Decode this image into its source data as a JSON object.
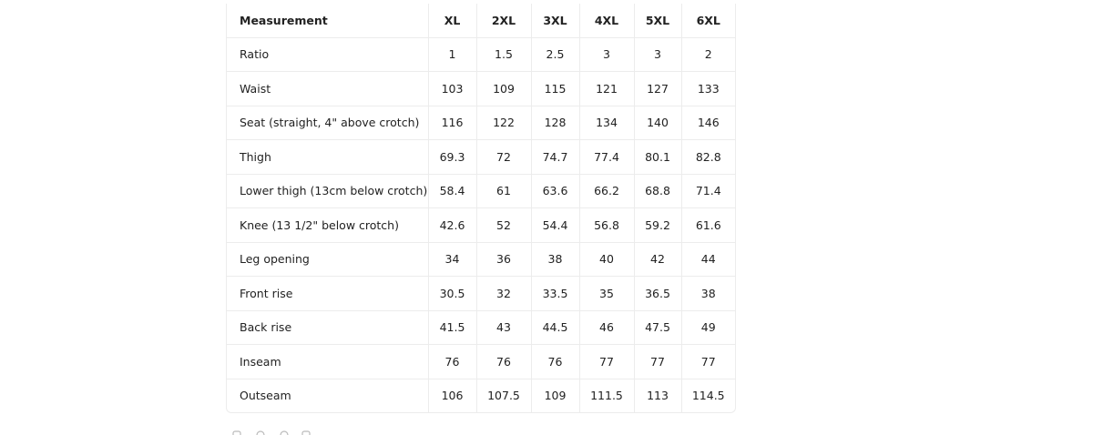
{
  "table": {
    "header": [
      "Measurement",
      "XL",
      "2XL",
      "3XL",
      "4XL",
      "5XL",
      "6XL"
    ],
    "rows": [
      [
        "Ratio",
        "1",
        "1.5",
        "2.5",
        "3",
        "3",
        "2"
      ],
      [
        "Waist",
        "103",
        "109",
        "115",
        "121",
        "127",
        "133"
      ],
      [
        "Seat (straight, 4\" above crotch)",
        "116",
        "122",
        "128",
        "134",
        "140",
        "146"
      ],
      [
        "Thigh",
        "69.3",
        "72",
        "74.7",
        "77.4",
        "80.1",
        "82.8"
      ],
      [
        "Lower thigh (13cm below crotch)",
        "58.4",
        "61",
        "63.6",
        "66.2",
        "68.8",
        "71.4"
      ],
      [
        "Knee (13 1/2\" below crotch)",
        "42.6",
        "52",
        "54.4",
        "56.8",
        "59.2",
        "61.6"
      ],
      [
        "Leg opening",
        "34",
        "36",
        "38",
        "40",
        "42",
        "44"
      ],
      [
        "Front rise",
        "30.5",
        "32",
        "33.5",
        "35",
        "36.5",
        "38"
      ],
      [
        "Back rise",
        "41.5",
        "43",
        "44.5",
        "46",
        "47.5",
        "49"
      ],
      [
        "Inseam",
        "76",
        "76",
        "76",
        "77",
        "77",
        "77"
      ],
      [
        "Outseam",
        "106",
        "107.5",
        "109",
        "111.5",
        "113",
        "114.5"
      ]
    ]
  }
}
